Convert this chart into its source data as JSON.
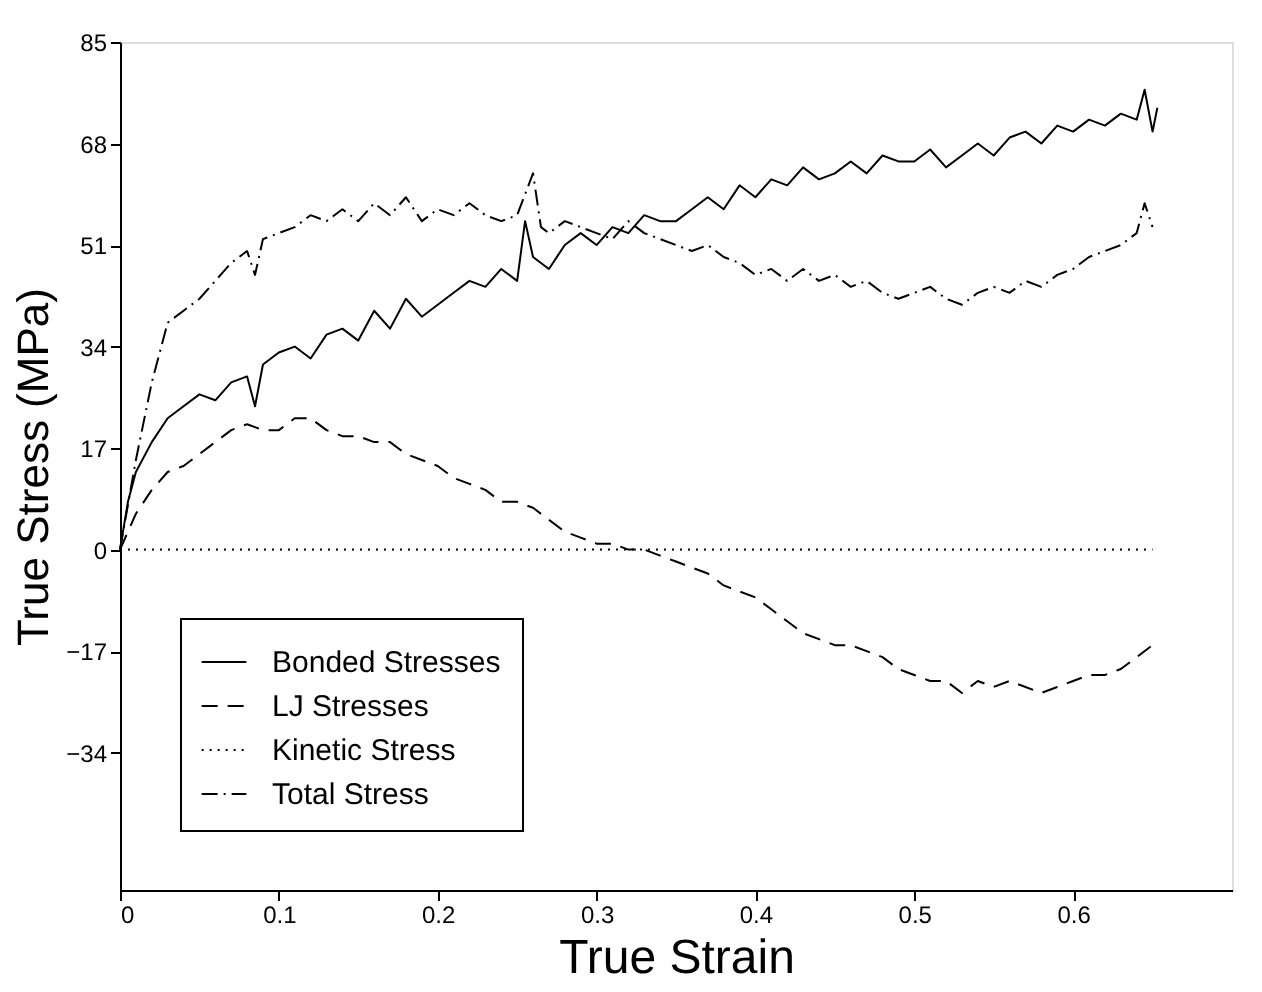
{
  "chart_data": {
    "type": "line",
    "xlabel": "True Strain",
    "ylabel": "True Stress (MPa)",
    "xlim": [
      0,
      0.7
    ],
    "ylim": [
      -57,
      85
    ],
    "xticks": [
      0,
      0.1,
      0.2,
      0.3,
      0.4,
      0.5,
      0.6
    ],
    "yticks": [
      -34,
      -17,
      0,
      17,
      34,
      51,
      68,
      85
    ],
    "grid": false,
    "legend": "bottom left",
    "marker": "none",
    "series": [
      {
        "name": "Bonded Stresses",
        "color": "#000000",
        "line_style": "solid",
        "x": [
          0,
          0.005,
          0.01,
          0.02,
          0.03,
          0.04,
          0.05,
          0.06,
          0.07,
          0.08,
          0.085,
          0.09,
          0.1,
          0.11,
          0.12,
          0.13,
          0.14,
          0.15,
          0.16,
          0.17,
          0.18,
          0.19,
          0.2,
          0.21,
          0.22,
          0.23,
          0.24,
          0.25,
          0.255,
          0.26,
          0.27,
          0.28,
          0.29,
          0.3,
          0.31,
          0.32,
          0.33,
          0.34,
          0.35,
          0.36,
          0.37,
          0.38,
          0.39,
          0.4,
          0.41,
          0.42,
          0.43,
          0.44,
          0.45,
          0.46,
          0.47,
          0.48,
          0.49,
          0.5,
          0.51,
          0.52,
          0.53,
          0.54,
          0.55,
          0.56,
          0.57,
          0.58,
          0.59,
          0.6,
          0.61,
          0.62,
          0.63,
          0.64,
          0.645,
          0.65,
          0.653
        ],
        "values": [
          0,
          8,
          13,
          18,
          22,
          24,
          26,
          25,
          28,
          29,
          24,
          31,
          33,
          34,
          32,
          36,
          37,
          35,
          40,
          37,
          42,
          39,
          41,
          43,
          45,
          44,
          47,
          45,
          55,
          49,
          47,
          51,
          53,
          51,
          54,
          53,
          56,
          55,
          55,
          57,
          59,
          57,
          61,
          59,
          62,
          61,
          64,
          62,
          63,
          65,
          63,
          66,
          65,
          65,
          67,
          64,
          66,
          68,
          66,
          69,
          70,
          68,
          71,
          70,
          72,
          71,
          73,
          72,
          77,
          70,
          74
        ]
      },
      {
        "name": "LJ Stresses",
        "color": "#000000",
        "line_style": "dashed",
        "x": [
          0,
          0.01,
          0.02,
          0.03,
          0.04,
          0.05,
          0.06,
          0.07,
          0.08,
          0.09,
          0.1,
          0.11,
          0.12,
          0.13,
          0.14,
          0.15,
          0.16,
          0.17,
          0.18,
          0.19,
          0.2,
          0.21,
          0.22,
          0.23,
          0.24,
          0.25,
          0.26,
          0.27,
          0.28,
          0.29,
          0.3,
          0.31,
          0.32,
          0.33,
          0.34,
          0.35,
          0.36,
          0.37,
          0.38,
          0.39,
          0.4,
          0.41,
          0.42,
          0.43,
          0.44,
          0.45,
          0.46,
          0.47,
          0.48,
          0.49,
          0.5,
          0.51,
          0.52,
          0.53,
          0.54,
          0.55,
          0.56,
          0.57,
          0.58,
          0.59,
          0.6,
          0.61,
          0.62,
          0.63,
          0.64,
          0.65
        ],
        "values": [
          0,
          6,
          10,
          13,
          14,
          16,
          18,
          20,
          21,
          20,
          20,
          22,
          22,
          20,
          19,
          19,
          18,
          18,
          16,
          15,
          14,
          12,
          11,
          10,
          8,
          8,
          7,
          5,
          3,
          2,
          1,
          1,
          0,
          0,
          -1,
          -2,
          -3,
          -4,
          -6,
          -7,
          -8,
          -10,
          -12,
          -14,
          -15,
          -16,
          -16,
          -17,
          -18,
          -20,
          -21,
          -22,
          -22,
          -24,
          -22,
          -23,
          -22,
          -23,
          -24,
          -23,
          -22,
          -21,
          -21,
          -20,
          -18,
          -16
        ]
      },
      {
        "name": "Kinetic Stress",
        "color": "#000000",
        "line_style": "dotted",
        "x": [
          0,
          0.65
        ],
        "values": [
          0,
          0
        ]
      },
      {
        "name": "Total Stress",
        "color": "#000000",
        "line_style": "dashdot",
        "x": [
          0,
          0.01,
          0.02,
          0.03,
          0.04,
          0.05,
          0.06,
          0.07,
          0.08,
          0.085,
          0.09,
          0.1,
          0.11,
          0.12,
          0.13,
          0.14,
          0.15,
          0.16,
          0.17,
          0.18,
          0.19,
          0.2,
          0.21,
          0.22,
          0.23,
          0.24,
          0.25,
          0.26,
          0.265,
          0.27,
          0.28,
          0.29,
          0.3,
          0.31,
          0.32,
          0.33,
          0.34,
          0.35,
          0.36,
          0.37,
          0.38,
          0.39,
          0.4,
          0.41,
          0.42,
          0.43,
          0.44,
          0.45,
          0.46,
          0.47,
          0.48,
          0.49,
          0.5,
          0.51,
          0.52,
          0.53,
          0.54,
          0.55,
          0.56,
          0.57,
          0.58,
          0.59,
          0.6,
          0.61,
          0.62,
          0.63,
          0.64,
          0.645,
          0.65
        ],
        "values": [
          0,
          15,
          28,
          38,
          40,
          42,
          45,
          48,
          50,
          46,
          52,
          53,
          54,
          56,
          55,
          57,
          55,
          58,
          56,
          59,
          55,
          57,
          56,
          58,
          56,
          55,
          56,
          63,
          54,
          53,
          55,
          54,
          53,
          52,
          55,
          53,
          52,
          51,
          50,
          51,
          49,
          48,
          46,
          47,
          45,
          47,
          45,
          46,
          44,
          45,
          43,
          42,
          43,
          44,
          42,
          41,
          43,
          44,
          43,
          45,
          44,
          46,
          47,
          49,
          50,
          51,
          53,
          58,
          54
        ]
      }
    ]
  }
}
